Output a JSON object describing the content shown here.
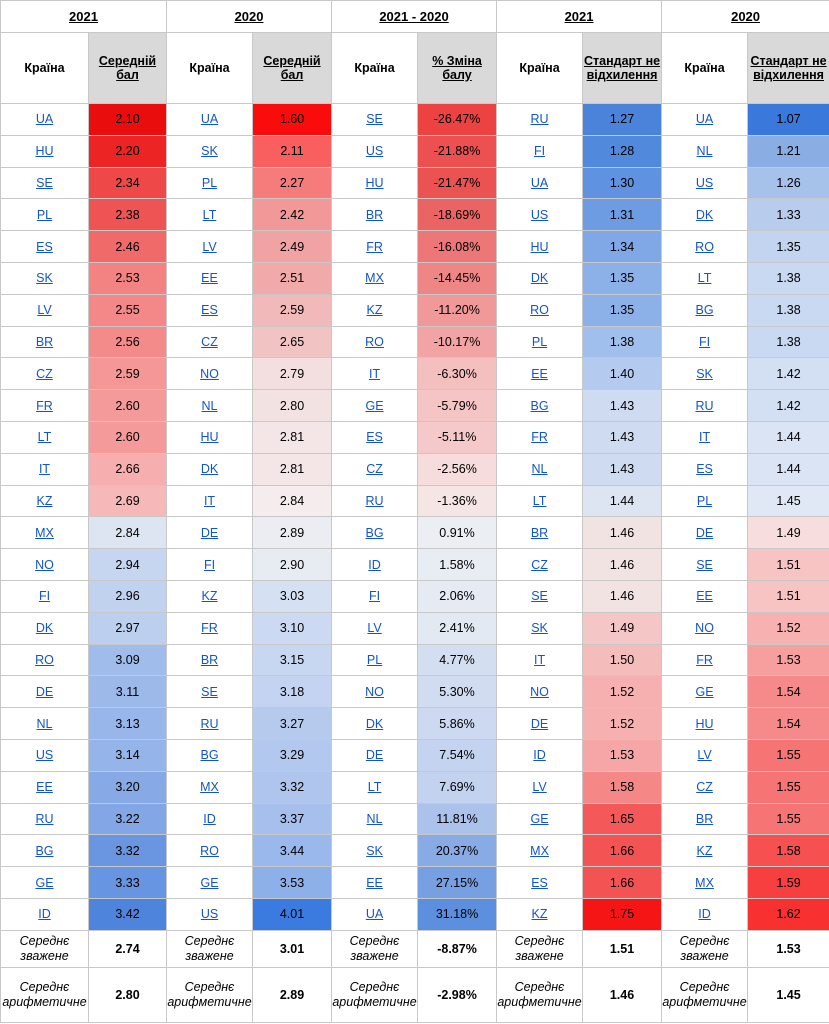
{
  "group_headers": [
    "2021",
    "2020",
    "2021 - 2020",
    "2021",
    "2020"
  ],
  "country_label": "Країна",
  "value_headers": [
    "Середній бал",
    "Середній бал",
    "% Зміна балу",
    "Стандарт не відхилення",
    "Стандарт не відхилення"
  ],
  "rows": [
    [
      [
        "UA",
        "2.10"
      ],
      [
        "UA",
        "1.60"
      ],
      [
        "SE",
        "-26.47%"
      ],
      [
        "RU",
        "1.27"
      ],
      [
        "UA",
        "1.07"
      ]
    ],
    [
      [
        "HU",
        "2.20"
      ],
      [
        "SK",
        "2.11"
      ],
      [
        "US",
        "-21.88%"
      ],
      [
        "FI",
        "1.28"
      ],
      [
        "NL",
        "1.21"
      ]
    ],
    [
      [
        "SE",
        "2.34"
      ],
      [
        "PL",
        "2.27"
      ],
      [
        "HU",
        "-21.47%"
      ],
      [
        "UA",
        "1.30"
      ],
      [
        "US",
        "1.26"
      ]
    ],
    [
      [
        "PL",
        "2.38"
      ],
      [
        "LT",
        "2.42"
      ],
      [
        "BR",
        "-18.69%"
      ],
      [
        "US",
        "1.31"
      ],
      [
        "DK",
        "1.33"
      ]
    ],
    [
      [
        "ES",
        "2.46"
      ],
      [
        "LV",
        "2.49"
      ],
      [
        "FR",
        "-16.08%"
      ],
      [
        "HU",
        "1.34"
      ],
      [
        "RO",
        "1.35"
      ]
    ],
    [
      [
        "SK",
        "2.53"
      ],
      [
        "EE",
        "2.51"
      ],
      [
        "MX",
        "-14.45%"
      ],
      [
        "DK",
        "1.35"
      ],
      [
        "LT",
        "1.38"
      ]
    ],
    [
      [
        "LV",
        "2.55"
      ],
      [
        "ES",
        "2.59"
      ],
      [
        "KZ",
        "-11.20%"
      ],
      [
        "RO",
        "1.35"
      ],
      [
        "BG",
        "1.38"
      ]
    ],
    [
      [
        "BR",
        "2.56"
      ],
      [
        "CZ",
        "2.65"
      ],
      [
        "RO",
        "-10.17%"
      ],
      [
        "PL",
        "1.38"
      ],
      [
        "FI",
        "1.38"
      ]
    ],
    [
      [
        "CZ",
        "2.59"
      ],
      [
        "NO",
        "2.79"
      ],
      [
        "IT",
        "-6.30%"
      ],
      [
        "EE",
        "1.40"
      ],
      [
        "SK",
        "1.42"
      ]
    ],
    [
      [
        "FR",
        "2.60"
      ],
      [
        "NL",
        "2.80"
      ],
      [
        "GE",
        "-5.79%"
      ],
      [
        "BG",
        "1.43"
      ],
      [
        "RU",
        "1.42"
      ]
    ],
    [
      [
        "LT",
        "2.60"
      ],
      [
        "HU",
        "2.81"
      ],
      [
        "ES",
        "-5.11%"
      ],
      [
        "FR",
        "1.43"
      ],
      [
        "IT",
        "1.44"
      ]
    ],
    [
      [
        "IT",
        "2.66"
      ],
      [
        "DK",
        "2.81"
      ],
      [
        "CZ",
        "-2.56%"
      ],
      [
        "NL",
        "1.43"
      ],
      [
        "ES",
        "1.44"
      ]
    ],
    [
      [
        "KZ",
        "2.69"
      ],
      [
        "IT",
        "2.84"
      ],
      [
        "RU",
        "-1.36%"
      ],
      [
        "LT",
        "1.44"
      ],
      [
        "PL",
        "1.45"
      ]
    ],
    [
      [
        "MX",
        "2.84"
      ],
      [
        "DE",
        "2.89"
      ],
      [
        "BG",
        "0.91%"
      ],
      [
        "BR",
        "1.46"
      ],
      [
        "DE",
        "1.49"
      ]
    ],
    [
      [
        "NO",
        "2.94"
      ],
      [
        "FI",
        "2.90"
      ],
      [
        "ID",
        "1.58%"
      ],
      [
        "CZ",
        "1.46"
      ],
      [
        "SE",
        "1.51"
      ]
    ],
    [
      [
        "FI",
        "2.96"
      ],
      [
        "KZ",
        "3.03"
      ],
      [
        "FI",
        "2.06%"
      ],
      [
        "SE",
        "1.46"
      ],
      [
        "EE",
        "1.51"
      ]
    ],
    [
      [
        "DK",
        "2.97"
      ],
      [
        "FR",
        "3.10"
      ],
      [
        "LV",
        "2.41%"
      ],
      [
        "SK",
        "1.49"
      ],
      [
        "NO",
        "1.52"
      ]
    ],
    [
      [
        "RO",
        "3.09"
      ],
      [
        "BR",
        "3.15"
      ],
      [
        "PL",
        "4.77%"
      ],
      [
        "IT",
        "1.50"
      ],
      [
        "FR",
        "1.53"
      ]
    ],
    [
      [
        "DE",
        "3.11"
      ],
      [
        "SE",
        "3.18"
      ],
      [
        "NO",
        "5.30%"
      ],
      [
        "NO",
        "1.52"
      ],
      [
        "GE",
        "1.54"
      ]
    ],
    [
      [
        "NL",
        "3.13"
      ],
      [
        "RU",
        "3.27"
      ],
      [
        "DK",
        "5.86%"
      ],
      [
        "DE",
        "1.52"
      ],
      [
        "HU",
        "1.54"
      ]
    ],
    [
      [
        "US",
        "3.14"
      ],
      [
        "BG",
        "3.29"
      ],
      [
        "DE",
        "7.54%"
      ],
      [
        "ID",
        "1.53"
      ],
      [
        "LV",
        "1.55"
      ]
    ],
    [
      [
        "EE",
        "3.20"
      ],
      [
        "MX",
        "3.32"
      ],
      [
        "LT",
        "7.69%"
      ],
      [
        "LV",
        "1.58"
      ],
      [
        "CZ",
        "1.55"
      ]
    ],
    [
      [
        "RU",
        "3.22"
      ],
      [
        "ID",
        "3.37"
      ],
      [
        "NL",
        "11.81%"
      ],
      [
        "GE",
        "1.65"
      ],
      [
        "BR",
        "1.55"
      ]
    ],
    [
      [
        "BG",
        "3.32"
      ],
      [
        "RO",
        "3.44"
      ],
      [
        "SK",
        "20.37%"
      ],
      [
        "MX",
        "1.66"
      ],
      [
        "KZ",
        "1.58"
      ]
    ],
    [
      [
        "GE",
        "3.33"
      ],
      [
        "GE",
        "3.53"
      ],
      [
        "EE",
        "27.15%"
      ],
      [
        "ES",
        "1.66"
      ],
      [
        "MX",
        "1.59"
      ]
    ],
    [
      [
        "ID",
        "3.42"
      ],
      [
        "US",
        "4.01"
      ],
      [
        "UA",
        "31.18%"
      ],
      [
        "KZ",
        "1.75"
      ],
      [
        "ID",
        "1.62"
      ]
    ]
  ],
  "colors": [
    [
      "#ea0d0d",
      "#fa0c0c",
      "#ed4242",
      "#4b82da",
      "#3a78dc"
    ],
    [
      "#ec2424",
      "#f95f5f",
      "#ec5050",
      "#5189dd",
      "#8aaee4"
    ],
    [
      "#ee4848",
      "#f67c7c",
      "#eb5252",
      "#5f92e0",
      "#a7c2ea"
    ],
    [
      "#ef5454",
      "#f29898",
      "#eb6464",
      "#6e9ce3",
      "#b8cdee"
    ],
    [
      "#f06a6a",
      "#f1a3a3",
      "#ed7777",
      "#80a7e6",
      "#c2d4f0"
    ],
    [
      "#f38282",
      "#f2a9a9",
      "#ef8686",
      "#8cb0e8",
      "#cad9f2"
    ],
    [
      "#f48787",
      "#f1b9b9",
      "#f19898",
      "#8cb0e8",
      "#cad9f2"
    ],
    [
      "#f48b8b",
      "#f1c3c3",
      "#f2a3a3",
      "#a1bfec",
      "#cad9f2"
    ],
    [
      "#f59797",
      "#f3dfdf",
      "#f4bfbf",
      "#b4cbef",
      "#d3e0f4"
    ],
    [
      "#f59a9a",
      "#f3e2e2",
      "#f5c4c4",
      "#cfdbf0",
      "#d3e0f4"
    ],
    [
      "#f59a9a",
      "#f4e6e6",
      "#f5c9c9",
      "#cfdbf0",
      "#dae4f4"
    ],
    [
      "#f6aeae",
      "#f4e6e6",
      "#f6dcdc",
      "#cfdbf0",
      "#dae4f4"
    ],
    [
      "#f6b8b8",
      "#f5eded",
      "#f6e5e5",
      "#dde5f2",
      "#e0e8f5"
    ],
    [
      "#dde4f2",
      "#ebedf2",
      "#ebeef3",
      "#f2e3e3",
      "#f7dddd"
    ],
    [
      "#c6d5f0",
      "#e7ebf2",
      "#e8ecf3",
      "#f2e3e3",
      "#f7c3c3"
    ],
    [
      "#c1d2ef",
      "#d6e0f3",
      "#e5eaf3",
      "#f2e3e3",
      "#f7c3c3"
    ],
    [
      "#bdcfee",
      "#ccd9f2",
      "#e3e9f3",
      "#f5c6c6",
      "#f7b1b1"
    ],
    [
      "#a0bcea",
      "#c7d6f1",
      "#d4def1",
      "#f5bcbc",
      "#f79e9e"
    ],
    [
      "#9cb9ea",
      "#c3d3f1",
      "#d1dcf1",
      "#f6b0b0",
      "#f68a8a"
    ],
    [
      "#98b6ea",
      "#b6caee",
      "#cdd9f0",
      "#f6b0b0",
      "#f68a8a"
    ],
    [
      "#95b4e9",
      "#b3c8ee",
      "#c4d3ef",
      "#f6a6a6",
      "#f67474"
    ],
    [
      "#87aae6",
      "#afc5ee",
      "#c3d2ef",
      "#f68787",
      "#f67474"
    ],
    [
      "#83a7e6",
      "#a6bfed",
      "#abc2ea",
      "#f45858",
      "#f67474"
    ],
    [
      "#6a96e1",
      "#9ab8eb",
      "#88abe5",
      "#f45353",
      "#f65050"
    ],
    [
      "#6895e1",
      "#8eb0e9",
      "#77a0e3",
      "#f45353",
      "#f73f3f"
    ],
    [
      "#4f84dd",
      "#3b7adf",
      "#5c8fde",
      "#f61515",
      "#f83030"
    ]
  ],
  "summary": [
    {
      "label": "Середнє зважене",
      "values": [
        "2.74",
        "3.01",
        "-8.87%",
        "1.51",
        "1.53"
      ]
    },
    {
      "label": "Середнє арифметичне",
      "values": [
        "2.80",
        "2.89",
        "-2.98%",
        "1.46",
        "1.45"
      ]
    }
  ]
}
